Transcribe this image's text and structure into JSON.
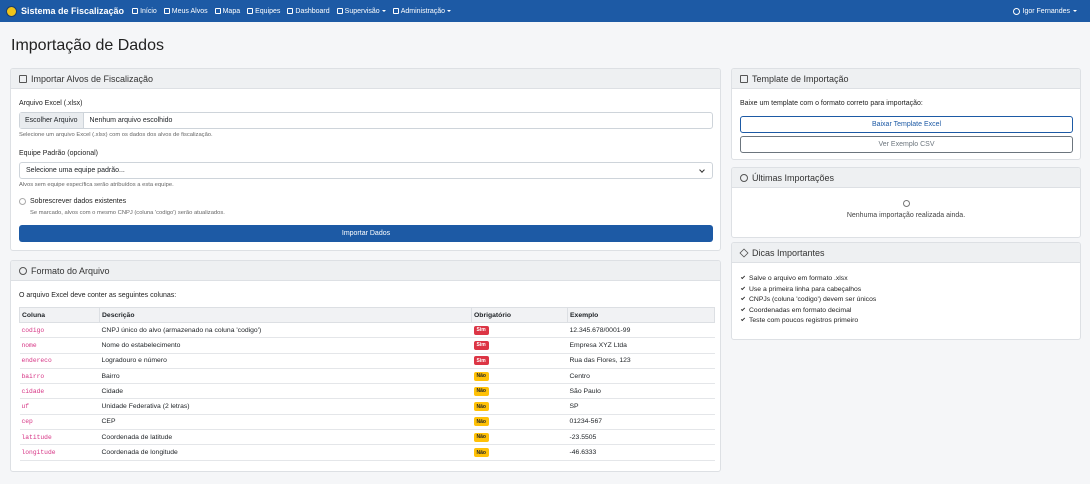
{
  "navbar": {
    "brand": "Sistema de Fiscalização",
    "items": [
      "Início",
      "Meus Alvos",
      "Mapa",
      "Equipes",
      "Dashboard",
      "Supervisão",
      "Administração"
    ],
    "user": "Igor Fernandes"
  },
  "page_title": "Importação de Dados",
  "import_card": {
    "title": "Importar Alvos de Fiscalização",
    "file_label": "Arquivo Excel (.xlsx)",
    "file_button": "Escolher Arquivo",
    "file_placeholder": "Nenhum arquivo escolhido",
    "file_help": "Selecione um arquivo Excel (.xlsx) com os dados dos alvos de fiscalização.",
    "team_label": "Equipe Padrão (opcional)",
    "team_placeholder": "Selecione uma equipe padrão...",
    "team_help": "Alvos sem equipe específica serão atribuídos a esta equipe.",
    "overwrite_label": "Sobrescrever dados existentes",
    "overwrite_help": "Se marcado, alvos com o mesmo CNPJ (coluna 'codigo') serão atualizados.",
    "submit": "Importar Dados"
  },
  "format_card": {
    "title": "Formato do Arquivo",
    "intro": "O arquivo Excel deve conter as seguintes colunas:",
    "table": {
      "headers": [
        "Coluna",
        "Descrição",
        "Obrigatório",
        "Exemplo"
      ],
      "rows": [
        [
          "codigo",
          "CNPJ único do alvo (armazenado na coluna 'codigo')",
          "Sim",
          "12.345.678/0001-99"
        ],
        [
          "nome",
          "Nome do estabelecimento",
          "Sim",
          "Empresa XYZ Ltda"
        ],
        [
          "endereco",
          "Logradouro e número",
          "Sim",
          "Rua das Flores, 123"
        ],
        [
          "bairro",
          "Bairro",
          "Não",
          "Centro"
        ],
        [
          "cidade",
          "Cidade",
          "Não",
          "São Paulo"
        ],
        [
          "uf",
          "Unidade Federativa (2 letras)",
          "Não",
          "SP"
        ],
        [
          "cep",
          "CEP",
          "Não",
          "01234-567"
        ],
        [
          "latitude",
          "Coordenada de latitude",
          "Não",
          "-23.5505"
        ],
        [
          "longitude",
          "Coordenada de longitude",
          "Não",
          "-46.6333"
        ]
      ]
    }
  },
  "template_card": {
    "title": "Template de Importação",
    "intro": "Baixe um template com o formato correto para importação:",
    "download_button": "Baixar Template Excel",
    "example_button": "Ver Exemplo CSV"
  },
  "recent_card": {
    "title": "Últimas Importações",
    "empty": "Nenhuma importação realizada ainda."
  },
  "tips_card": {
    "title": "Dicas Importantes",
    "items": [
      "Salve o arquivo em formato .xlsx",
      "Use a primeira linha para cabeçalhos",
      "CNPJs (coluna 'codigo') devem ser únicos",
      "Coordenadas em formato decimal",
      "Teste com poucos registros primeiro"
    ]
  }
}
